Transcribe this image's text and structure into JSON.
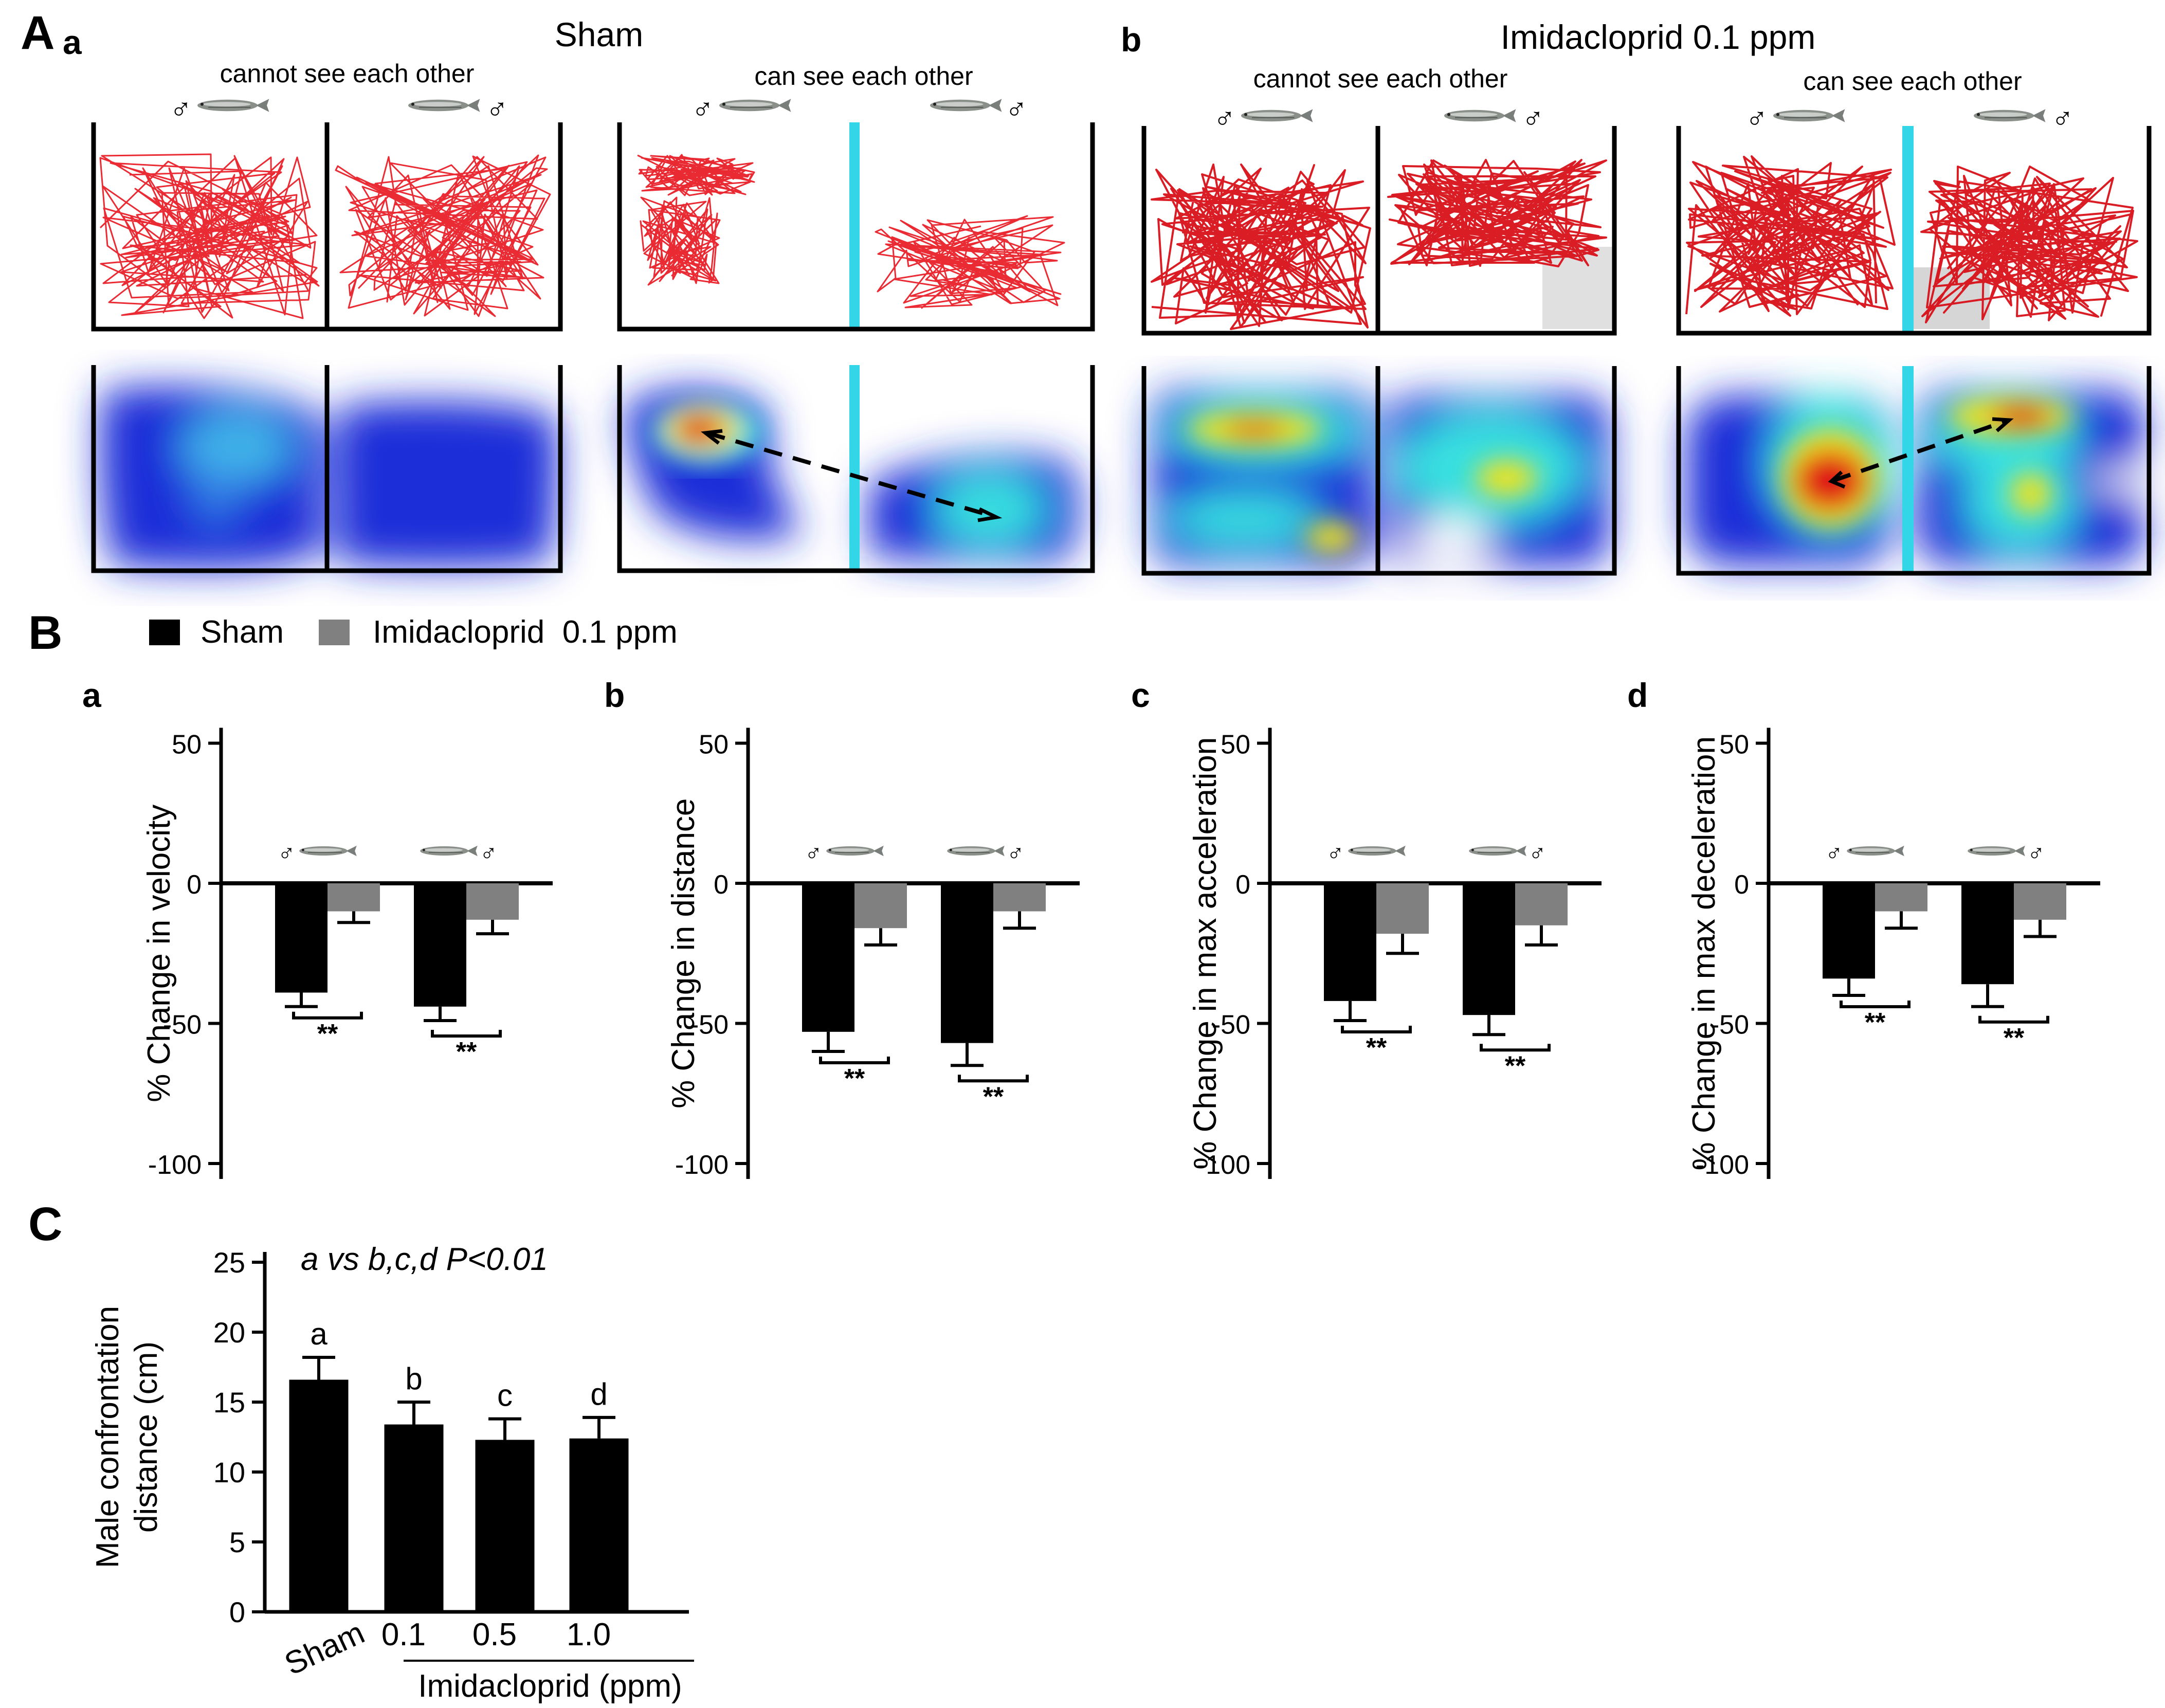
{
  "colors": {
    "sham": "#000000",
    "imidacloprid": "#808080",
    "track": "#e8141e",
    "divider": "#33d6e6",
    "heat_low": "#1a2fd8",
    "heat_mid": "#38e0e0",
    "heat_high": "#f2e21a",
    "heat_peak": "#e01414"
  },
  "panel_A": {
    "label": "A",
    "sub_a": "a",
    "sub_b": "b",
    "title_sham": "Sham",
    "title_imid": "Imidacloprid 0.1 ppm",
    "cond_cannot": "cannot see each other",
    "cond_can": "can see each other",
    "male_symbol": "♂"
  },
  "panel_B": {
    "label": "B",
    "legend": [
      {
        "name": "Sham",
        "color": "#000000"
      },
      {
        "name": "Imidacloprid  0.1 ppm",
        "color": "#808080"
      }
    ],
    "sig": "**",
    "male_symbol": "♂"
  },
  "panel_C": {
    "label": "C",
    "annotation": "a vs b,c,d P<0.01",
    "xgroup_label": "Imidacloprid (ppm)"
  },
  "chart_data": [
    {
      "id": "B-a",
      "panel": "a",
      "type": "bar",
      "ylabel": "% Change in velocity",
      "ylim": [
        -100,
        50
      ],
      "yticks": [
        50,
        0,
        -50,
        -100
      ],
      "categories": [
        "left male",
        "right male"
      ],
      "series": [
        {
          "name": "Sham",
          "values": [
            -39,
            -44
          ],
          "errors": [
            5,
            5
          ]
        },
        {
          "name": "Imidacloprid 0.1 ppm",
          "values": [
            -10,
            -13
          ],
          "errors": [
            4,
            5
          ]
        }
      ],
      "significance": [
        "**",
        "**"
      ]
    },
    {
      "id": "B-b",
      "panel": "b",
      "type": "bar",
      "ylabel": "% Change in distance",
      "ylim": [
        -100,
        50
      ],
      "yticks": [
        50,
        0,
        -50,
        -100
      ],
      "categories": [
        "left male",
        "right male"
      ],
      "series": [
        {
          "name": "Sham",
          "values": [
            -53,
            -57
          ],
          "errors": [
            7,
            8
          ]
        },
        {
          "name": "Imidacloprid 0.1 ppm",
          "values": [
            -16,
            -10
          ],
          "errors": [
            6,
            6
          ]
        }
      ],
      "significance": [
        "**",
        "**"
      ]
    },
    {
      "id": "B-c",
      "panel": "c",
      "type": "bar",
      "ylabel": "% Change in max acceleration",
      "ylim": [
        -100,
        50
      ],
      "yticks": [
        50,
        0,
        -50,
        -100
      ],
      "categories": [
        "left male",
        "right male"
      ],
      "series": [
        {
          "name": "Sham",
          "values": [
            -42,
            -47
          ],
          "errors": [
            7,
            7
          ]
        },
        {
          "name": "Imidacloprid 0.1 ppm",
          "values": [
            -18,
            -15
          ],
          "errors": [
            7,
            7
          ]
        }
      ],
      "significance": [
        "**",
        "**"
      ]
    },
    {
      "id": "B-d",
      "panel": "d",
      "type": "bar",
      "ylabel": "% Change in max deceleration",
      "ylim": [
        -100,
        50
      ],
      "yticks": [
        50,
        0,
        -50,
        -100
      ],
      "categories": [
        "left male",
        "right male"
      ],
      "series": [
        {
          "name": "Sham",
          "values": [
            -34,
            -36
          ],
          "errors": [
            6,
            8
          ]
        },
        {
          "name": "Imidacloprid 0.1 ppm",
          "values": [
            -10,
            -13
          ],
          "errors": [
            6,
            6
          ]
        }
      ],
      "significance": [
        "**",
        "**"
      ]
    },
    {
      "id": "C",
      "panel": "C",
      "type": "bar",
      "ylabel": "Male confrontation distance (cm)",
      "ylabel_lines": [
        "Male confrontation",
        "distance (cm)"
      ],
      "ylim": [
        0,
        25
      ],
      "yticks": [
        0,
        5,
        10,
        15,
        20,
        25
      ],
      "categories": [
        "Sham",
        "0.1",
        "0.5",
        "1.0"
      ],
      "values": [
        16.6,
        13.4,
        12.3,
        12.4
      ],
      "errors": [
        1.6,
        1.6,
        1.5,
        1.5
      ],
      "letters": [
        "a",
        "b",
        "c",
        "d"
      ]
    }
  ]
}
